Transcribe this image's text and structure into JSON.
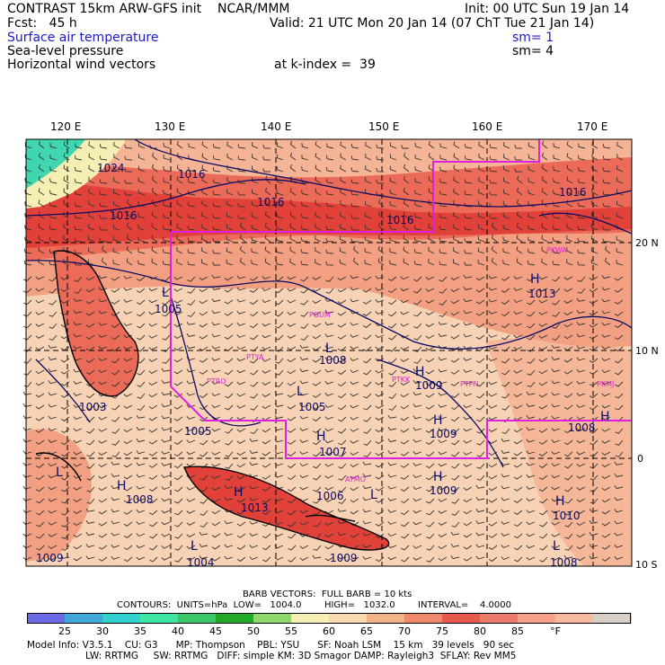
{
  "header": {
    "title": "CONTRAST 15km ARW-GFS init    NCAR/MMM",
    "init": "Init: 00 UTC Sun 19 Jan 14",
    "fcst": "Fcst:   45 h",
    "valid": "Valid: 21 UTC Mon 20 Jan 14 (07 ChT Tue 21 Jan 14)",
    "field1": "Surface air temperature",
    "field2": "Sea-level pressure",
    "field3": "Horizontal wind vectors",
    "sm1": "sm= 1",
    "sm2": "sm= 4",
    "kindex": "at k-index =  39"
  },
  "map": {
    "lon_labels": [
      "120 E",
      "130 E",
      "140 E",
      "150 E",
      "160 E",
      "170 E"
    ],
    "lat_labels": [
      "20 N",
      "10 N",
      "0",
      "10 S"
    ],
    "contour_labels": [
      "1024",
      "1016",
      "1016",
      "1016",
      "1016",
      "1016",
      "1005",
      "1008",
      "1005",
      "1003",
      "1005",
      "1007",
      "1009",
      "1009",
      "1013",
      "1006",
      "1009",
      "1010",
      "1008",
      "1009",
      "1004",
      "1013",
      "1009",
      "1008",
      "1008"
    ],
    "pressure_centers": [
      "H",
      "L",
      "L",
      "L",
      "H",
      "H",
      "H",
      "H",
      "H",
      "H",
      "H",
      "L",
      "H",
      "L",
      "L",
      "L"
    ],
    "stations": [
      "PKWA",
      "PGUM",
      "PTYA",
      "PTRO",
      "PTKK",
      "PTPN",
      "PKMJ",
      "AYMO"
    ],
    "colors": {
      "warm": "#f8d2b4",
      "w80": "#f3a082",
      "w75": "#ec6a58",
      "w70": "#e2413a",
      "cool": "#3fd6b0",
      "boundary": "#e020e0",
      "contour": "#0a0a64"
    }
  },
  "footer": {
    "barb": "BARB VECTORS:  FULL BARB = 10 kts",
    "contours": "CONTOURS:  UNITS=hPa  LOW=   1004.0        HIGH=   1032.0        INTERVAL=    4.0000",
    "colorbar_labels": [
      "25",
      "30",
      "35",
      "40",
      "45",
      "50",
      "55",
      "60",
      "65",
      "70",
      "75",
      "80",
      "85",
      "°F"
    ],
    "colorbar_colors": [
      "#6a6ae8",
      "#3fa9d6",
      "#35d1d0",
      "#3fe4a6",
      "#39c76a",
      "#21a824",
      "#8fd86a",
      "#f5efb4",
      "#f8d9b0",
      "#f4b48a",
      "#ee8a6a",
      "#e65a4a",
      "#ec7a6c",
      "#f7a28c",
      "#f6b9a0",
      "#d8cfc9"
    ],
    "info1": "Model Info: V3.5.1    CU: G3      MP: Thompson    PBL: YSU      SF: Noah LSM    15 km   39 levels   90 sec",
    "info2": "LW: RRTMG     SW: RRTMG   DIFF: simple KM: 3D Smagor DAMP: Rayleigh3  SFLAY: Rev MM5"
  }
}
